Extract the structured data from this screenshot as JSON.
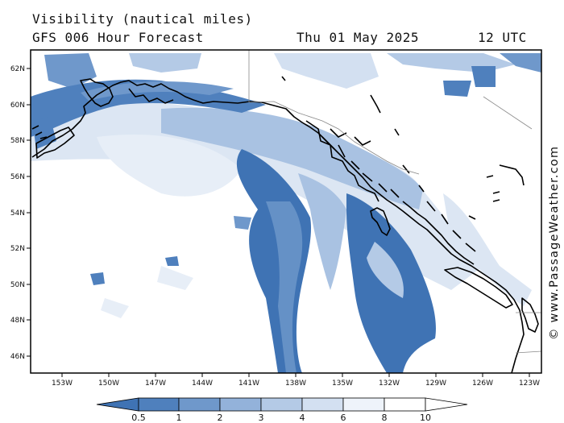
{
  "header": {
    "title": "Visibility (nautical miles)",
    "subtitle": "GFS 006 Hour Forecast",
    "date": "Thu 01 May 2025",
    "time": "12 UTC"
  },
  "credit": "© www.PassageWeather.com",
  "axes": {
    "lat_labels": [
      "62N",
      "60N",
      "58N",
      "56N",
      "54N",
      "52N",
      "50N",
      "48N",
      "46N"
    ],
    "lon_labels": [
      "153W",
      "150W",
      "147W",
      "144W",
      "141W",
      "138W",
      "135W",
      "132W",
      "129W",
      "126W",
      "123W"
    ]
  },
  "colorbar": {
    "labels": [
      "0.5",
      "1",
      "2",
      "3",
      "4",
      "6",
      "8",
      "10"
    ],
    "colors": [
      "#3f73b4",
      "#4f80bd",
      "#6f98cb",
      "#93b2da",
      "#b4cae6",
      "#d3e0f1",
      "#eef3fa"
    ]
  },
  "colors": {
    "very_poor": "#3f73b4",
    "poor": "#6f98cb",
    "moderate": "#a9c2e2",
    "good": "#dce6f3",
    "coastline": "#000000"
  }
}
